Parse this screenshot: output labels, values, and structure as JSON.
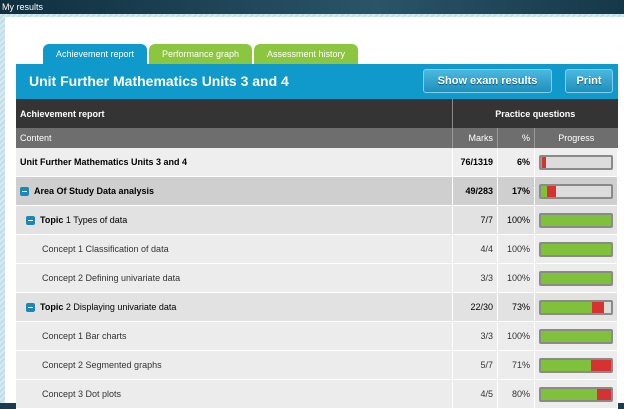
{
  "window_title": "My results",
  "tabs": [
    {
      "label": "Achievement report",
      "active": true
    },
    {
      "label": "Performance graph"
    },
    {
      "label": "Assessment history"
    }
  ],
  "header": {
    "title": "Unit Further Mathematics Units 3 and 4",
    "show_exam_results": "Show exam results",
    "print": "Print"
  },
  "table": {
    "col_report": "Achievement report",
    "col_practice": "Practice questions",
    "col_content": "Content",
    "col_marks": "Marks",
    "col_pct": "%",
    "col_progress": "Progress"
  },
  "colors": {
    "correct": "#7fc13a",
    "incorrect": "#d63232",
    "accent": "#0f9acb",
    "tab_inactive": "#8cc63f"
  },
  "rows": [
    {
      "type": "unit",
      "label": "Unit Further Mathematics Units 3 and 4",
      "marks": "76/1319",
      "pct": "6%",
      "correct": 0.02,
      "incorrect": 0.05
    },
    {
      "type": "area",
      "label": "Area Of Study Data analysis",
      "marks": "49/283",
      "pct": "17%",
      "correct": 0.08,
      "incorrect": 0.14
    },
    {
      "type": "topic",
      "prefix": "Topic",
      "label": "1 Types of data",
      "marks": "7/7",
      "pct": "100%",
      "correct": 1,
      "incorrect": 0
    },
    {
      "type": "concept",
      "label": "Concept 1 Classification of data",
      "marks": "4/4",
      "pct": "100%",
      "correct": 1,
      "incorrect": 0
    },
    {
      "type": "concept",
      "label": "Concept 2 Defining univariate data",
      "marks": "3/3",
      "pct": "100%",
      "correct": 1,
      "incorrect": 0
    },
    {
      "type": "topic",
      "prefix": "Topic",
      "label": "2 Displaying univariate data",
      "marks": "22/30",
      "pct": "73%",
      "correct": 0.73,
      "incorrect": 0.17
    },
    {
      "type": "concept",
      "label": "Concept 1 Bar charts",
      "marks": "3/3",
      "pct": "100%",
      "correct": 1,
      "incorrect": 0
    },
    {
      "type": "concept",
      "label": "Concept 2 Segmented graphs",
      "marks": "5/7",
      "pct": "71%",
      "correct": 0.71,
      "incorrect": 0.29
    },
    {
      "type": "concept",
      "label": "Concept 3 Dot plots",
      "marks": "4/5",
      "pct": "80%",
      "correct": 0.8,
      "incorrect": 0.2
    }
  ]
}
